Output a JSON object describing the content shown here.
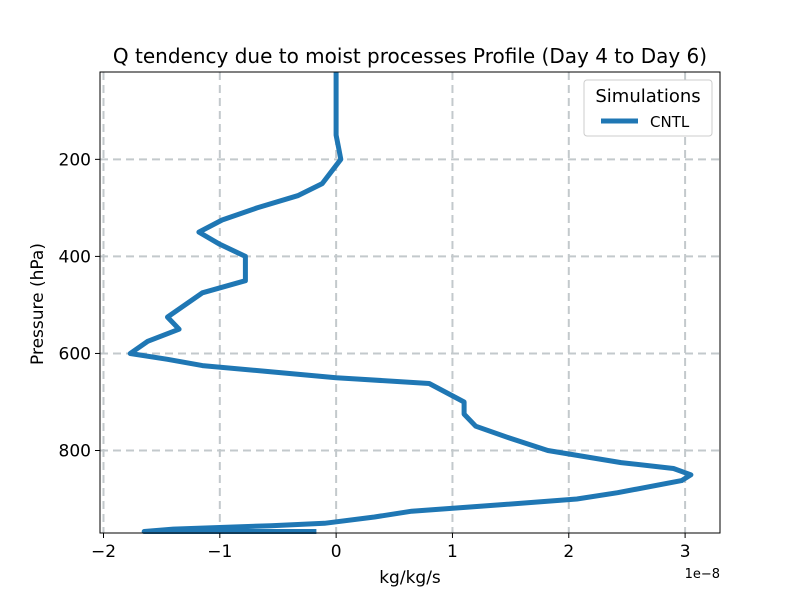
{
  "chart_data": {
    "type": "line",
    "title": "Q tendency due to moist processes Profile (Day 4 to Day 6)",
    "xlabel": "kg/kg/s",
    "ylabel": "Pressure (hPa)",
    "x_offset_label": "1e−8",
    "xlim": [
      -2.03,
      3.3
    ],
    "ylim": [
      970,
      20
    ],
    "y_inverted": true,
    "grid": true,
    "x_ticks": [
      -2,
      -1,
      0,
      1,
      2,
      3
    ],
    "x_tick_labels": [
      "−2",
      "−1",
      "0",
      "1",
      "2",
      "3"
    ],
    "y_ticks": [
      200,
      400,
      600,
      800
    ],
    "y_tick_labels": [
      "200",
      "400",
      "600",
      "800"
    ],
    "legend": {
      "title": "Simulations",
      "placement": "top-right"
    },
    "series": [
      {
        "name": "CNTL",
        "color": "#1f77b4",
        "x_units": "1e-8 kg/kg/s",
        "points": [
          [
            0.0,
            20
          ],
          [
            0.0,
            50
          ],
          [
            0.0,
            100
          ],
          [
            0.0,
            150
          ],
          [
            0.02,
            175
          ],
          [
            0.04,
            200
          ],
          [
            -0.12,
            250
          ],
          [
            -0.33,
            275
          ],
          [
            -0.68,
            300
          ],
          [
            -0.98,
            325
          ],
          [
            -1.18,
            350
          ],
          [
            -1.0,
            375
          ],
          [
            -0.78,
            400
          ],
          [
            -0.78,
            425
          ],
          [
            -0.78,
            450
          ],
          [
            -1.15,
            475
          ],
          [
            -1.45,
            525
          ],
          [
            -1.35,
            550
          ],
          [
            -1.62,
            575
          ],
          [
            -1.77,
            600
          ],
          [
            -1.45,
            612
          ],
          [
            -1.15,
            625
          ],
          [
            -0.6,
            637
          ],
          [
            0.0,
            650
          ],
          [
            0.8,
            662
          ],
          [
            1.1,
            700
          ],
          [
            1.1,
            725
          ],
          [
            1.2,
            750
          ],
          [
            1.5,
            775
          ],
          [
            1.82,
            800
          ],
          [
            2.45,
            825
          ],
          [
            2.9,
            837
          ],
          [
            3.05,
            850
          ],
          [
            2.97,
            862
          ],
          [
            2.42,
            887
          ],
          [
            2.07,
            900
          ],
          [
            1.4,
            912
          ],
          [
            0.65,
            925
          ],
          [
            0.33,
            937
          ],
          [
            -0.1,
            950
          ],
          [
            -0.56,
            955
          ],
          [
            -1.4,
            962
          ],
          [
            -1.65,
            967
          ],
          [
            -0.17,
            967
          ]
        ]
      }
    ]
  }
}
